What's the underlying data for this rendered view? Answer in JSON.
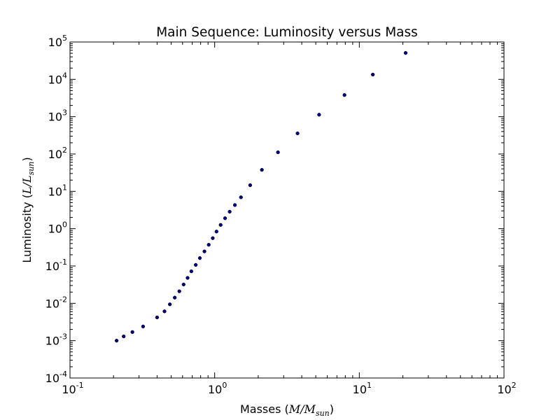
{
  "chart_data": {
    "type": "scatter",
    "title": "Main Sequence: Luminosity versus Mass",
    "xlabel": {
      "prefix": "Masses (",
      "var": "M",
      "slash": "/",
      "base": "M",
      "sub": "sun",
      "suffix": ")"
    },
    "ylabel": {
      "prefix": "Luminosity (",
      "var": "L",
      "slash": "/",
      "base": "L",
      "sub": "sun",
      "suffix": ")"
    },
    "x_scale": "log",
    "y_scale": "log",
    "xlim": [
      0.1,
      100
    ],
    "ylim": [
      0.0001,
      100000
    ],
    "x_ticks": [
      {
        "value": 0.1,
        "base": "10",
        "exp": "-1"
      },
      {
        "value": 1,
        "base": "10",
        "exp": "0"
      },
      {
        "value": 10,
        "base": "10",
        "exp": "1"
      },
      {
        "value": 100,
        "base": "10",
        "exp": "2"
      }
    ],
    "y_ticks": [
      {
        "value": 0.0001,
        "base": "10",
        "exp": "-4"
      },
      {
        "value": 0.001,
        "base": "10",
        "exp": "-3"
      },
      {
        "value": 0.01,
        "base": "10",
        "exp": "-2"
      },
      {
        "value": 0.1,
        "base": "10",
        "exp": "-1"
      },
      {
        "value": 1,
        "base": "10",
        "exp": "0"
      },
      {
        "value": 10,
        "base": "10",
        "exp": "1"
      },
      {
        "value": 100,
        "base": "10",
        "exp": "2"
      },
      {
        "value": 1000,
        "base": "10",
        "exp": "3"
      },
      {
        "value": 10000,
        "base": "10",
        "exp": "4"
      },
      {
        "value": 100000,
        "base": "10",
        "exp": "5"
      }
    ],
    "grid": false,
    "marker_color": "#000080",
    "series": [
      {
        "points": [
          {
            "x": 0.21,
            "y": 0.001
          },
          {
            "x": 0.235,
            "y": 0.0013
          },
          {
            "x": 0.27,
            "y": 0.0017
          },
          {
            "x": 0.32,
            "y": 0.0024
          },
          {
            "x": 0.4,
            "y": 0.0042
          },
          {
            "x": 0.45,
            "y": 0.0061
          },
          {
            "x": 0.49,
            "y": 0.0094
          },
          {
            "x": 0.53,
            "y": 0.0142
          },
          {
            "x": 0.57,
            "y": 0.021
          },
          {
            "x": 0.61,
            "y": 0.032
          },
          {
            "x": 0.65,
            "y": 0.048
          },
          {
            "x": 0.69,
            "y": 0.072
          },
          {
            "x": 0.74,
            "y": 0.107
          },
          {
            "x": 0.79,
            "y": 0.163
          },
          {
            "x": 0.85,
            "y": 0.246
          },
          {
            "x": 0.91,
            "y": 0.37
          },
          {
            "x": 0.97,
            "y": 0.556
          },
          {
            "x": 1.03,
            "y": 0.838
          },
          {
            "x": 1.1,
            "y": 1.26
          },
          {
            "x": 1.18,
            "y": 1.9
          },
          {
            "x": 1.27,
            "y": 2.85
          },
          {
            "x": 1.38,
            "y": 4.29
          },
          {
            "x": 1.52,
            "y": 6.92
          },
          {
            "x": 1.76,
            "y": 14.6
          },
          {
            "x": 2.12,
            "y": 37.6
          },
          {
            "x": 2.74,
            "y": 111
          },
          {
            "x": 3.74,
            "y": 357
          },
          {
            "x": 5.27,
            "y": 1130
          },
          {
            "x": 7.9,
            "y": 3800
          },
          {
            "x": 12.4,
            "y": 13400
          },
          {
            "x": 20.9,
            "y": 50900
          }
        ]
      }
    ]
  }
}
